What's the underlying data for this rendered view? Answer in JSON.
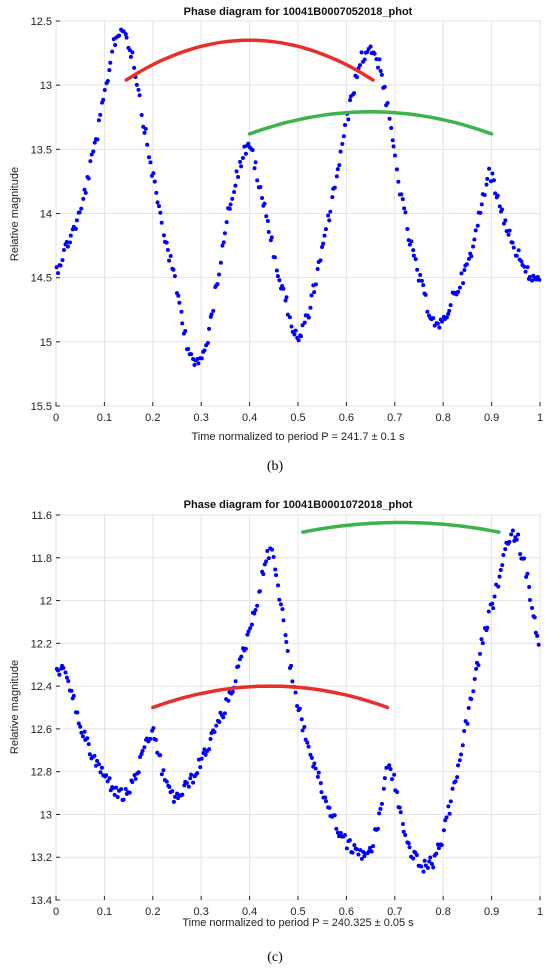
{
  "chart_data": [
    {
      "type": "scatter",
      "title": "Phase diagram for 10041B0007052018_phot",
      "xlabel": "Time normalized to period P = 241.7 ± 0.1 s",
      "ylabel": "Relative magnitude",
      "xlim": [
        0,
        1
      ],
      "ylim": [
        12.5,
        15.5
      ],
      "y_reversed": true,
      "grid": true,
      "x_ticks": [
        "0",
        "0.1",
        "0.2",
        "0.3",
        "0.4",
        "0.5",
        "0.6",
        "0.7",
        "0.8",
        "0.9",
        "1"
      ],
      "y_ticks": [
        "12.5",
        "13",
        "13.5",
        "14",
        "14.5",
        "15",
        "15.5"
      ],
      "panel_label": "(b)",
      "points_color": "#0000ff",
      "point_anchors": [
        [
          0.0,
          14.45
        ],
        [
          0.05,
          14.0
        ],
        [
          0.09,
          13.3
        ],
        [
          0.12,
          12.65
        ],
        [
          0.14,
          12.55
        ],
        [
          0.16,
          12.8
        ],
        [
          0.19,
          13.5
        ],
        [
          0.22,
          14.1
        ],
        [
          0.25,
          14.6
        ],
        [
          0.27,
          15.0
        ],
        [
          0.29,
          15.2
        ],
        [
          0.31,
          15.05
        ],
        [
          0.33,
          14.6
        ],
        [
          0.35,
          14.1
        ],
        [
          0.37,
          13.75
        ],
        [
          0.39,
          13.5
        ],
        [
          0.405,
          13.5
        ],
        [
          0.42,
          13.8
        ],
        [
          0.44,
          14.1
        ],
        [
          0.46,
          14.5
        ],
        [
          0.48,
          14.75
        ],
        [
          0.49,
          14.9
        ],
        [
          0.5,
          15.0
        ],
        [
          0.52,
          14.8
        ],
        [
          0.55,
          14.3
        ],
        [
          0.58,
          13.7
        ],
        [
          0.61,
          13.1
        ],
        [
          0.63,
          12.8
        ],
        [
          0.65,
          12.7
        ],
        [
          0.67,
          12.85
        ],
        [
          0.69,
          13.3
        ],
        [
          0.71,
          13.8
        ],
        [
          0.73,
          14.2
        ],
        [
          0.75,
          14.5
        ],
        [
          0.77,
          14.75
        ],
        [
          0.79,
          14.9
        ],
        [
          0.8,
          14.85
        ],
        [
          0.82,
          14.65
        ],
        [
          0.84,
          14.5
        ],
        [
          0.86,
          14.3
        ],
        [
          0.88,
          13.9
        ],
        [
          0.895,
          13.65
        ],
        [
          0.91,
          13.85
        ],
        [
          0.94,
          14.2
        ],
        [
          0.97,
          14.45
        ],
        [
          1.0,
          14.55
        ]
      ],
      "trend_lines": [
        {
          "color": "#e8302a",
          "x": [
            0.145,
            0.4,
            0.655
          ],
          "y": [
            12.96,
            12.65,
            12.96
          ]
        },
        {
          "color": "#3cb44b",
          "x": [
            0.4,
            0.68,
            0.9
          ],
          "y": [
            13.38,
            13.21,
            13.38
          ]
        }
      ]
    },
    {
      "type": "scatter",
      "title": "Phase diagram for 10041B0001072018_phot",
      "xlabel": "Time normalized to period P = 240.325 ± 0.05 s",
      "ylabel": "Relative magnitude",
      "xlim": [
        0,
        1
      ],
      "ylim": [
        11.6,
        13.4
      ],
      "y_reversed": true,
      "grid": true,
      "x_ticks": [
        "0",
        "0.1",
        "0.2",
        "0.3",
        "0.4",
        "0.5",
        "0.6",
        "0.7",
        "0.8",
        "0.9",
        "1"
      ],
      "y_ticks": [
        "11.6",
        "11.8",
        "12",
        "12.2",
        "12.4",
        "12.6",
        "12.8",
        "13",
        "13.2",
        "13.4"
      ],
      "panel_label": "(c)",
      "points_color": "#0000ff",
      "point_anchors": [
        [
          0.0,
          12.3
        ],
        [
          0.02,
          12.35
        ],
        [
          0.04,
          12.5
        ],
        [
          0.06,
          12.65
        ],
        [
          0.08,
          12.75
        ],
        [
          0.1,
          12.82
        ],
        [
          0.12,
          12.88
        ],
        [
          0.14,
          12.92
        ],
        [
          0.16,
          12.85
        ],
        [
          0.18,
          12.72
        ],
        [
          0.2,
          12.6
        ],
        [
          0.22,
          12.8
        ],
        [
          0.24,
          12.92
        ],
        [
          0.26,
          12.9
        ],
        [
          0.29,
          12.8
        ],
        [
          0.32,
          12.65
        ],
        [
          0.35,
          12.5
        ],
        [
          0.38,
          12.3
        ],
        [
          0.41,
          12.05
        ],
        [
          0.43,
          11.85
        ],
        [
          0.445,
          11.73
        ],
        [
          0.46,
          11.95
        ],
        [
          0.48,
          12.25
        ],
        [
          0.5,
          12.5
        ],
        [
          0.53,
          12.75
        ],
        [
          0.56,
          12.95
        ],
        [
          0.59,
          13.1
        ],
        [
          0.62,
          13.18
        ],
        [
          0.65,
          13.18
        ],
        [
          0.67,
          13.0
        ],
        [
          0.685,
          12.75
        ],
        [
          0.7,
          12.85
        ],
        [
          0.72,
          13.1
        ],
        [
          0.74,
          13.2
        ],
        [
          0.76,
          13.25
        ],
        [
          0.78,
          13.22
        ],
        [
          0.8,
          13.1
        ],
        [
          0.82,
          12.9
        ],
        [
          0.85,
          12.55
        ],
        [
          0.88,
          12.2
        ],
        [
          0.91,
          11.95
        ],
        [
          0.93,
          11.75
        ],
        [
          0.95,
          11.68
        ],
        [
          0.97,
          11.85
        ],
        [
          0.99,
          12.1
        ],
        [
          1.0,
          12.25
        ]
      ],
      "trend_lines": [
        {
          "color": "#e8302a",
          "x": [
            0.2,
            0.44,
            0.685
          ],
          "y": [
            12.5,
            12.4,
            12.5
          ]
        },
        {
          "color": "#3cb44b",
          "x": [
            0.51,
            0.72,
            0.915
          ],
          "y": [
            11.68,
            11.635,
            11.68
          ]
        }
      ]
    }
  ]
}
